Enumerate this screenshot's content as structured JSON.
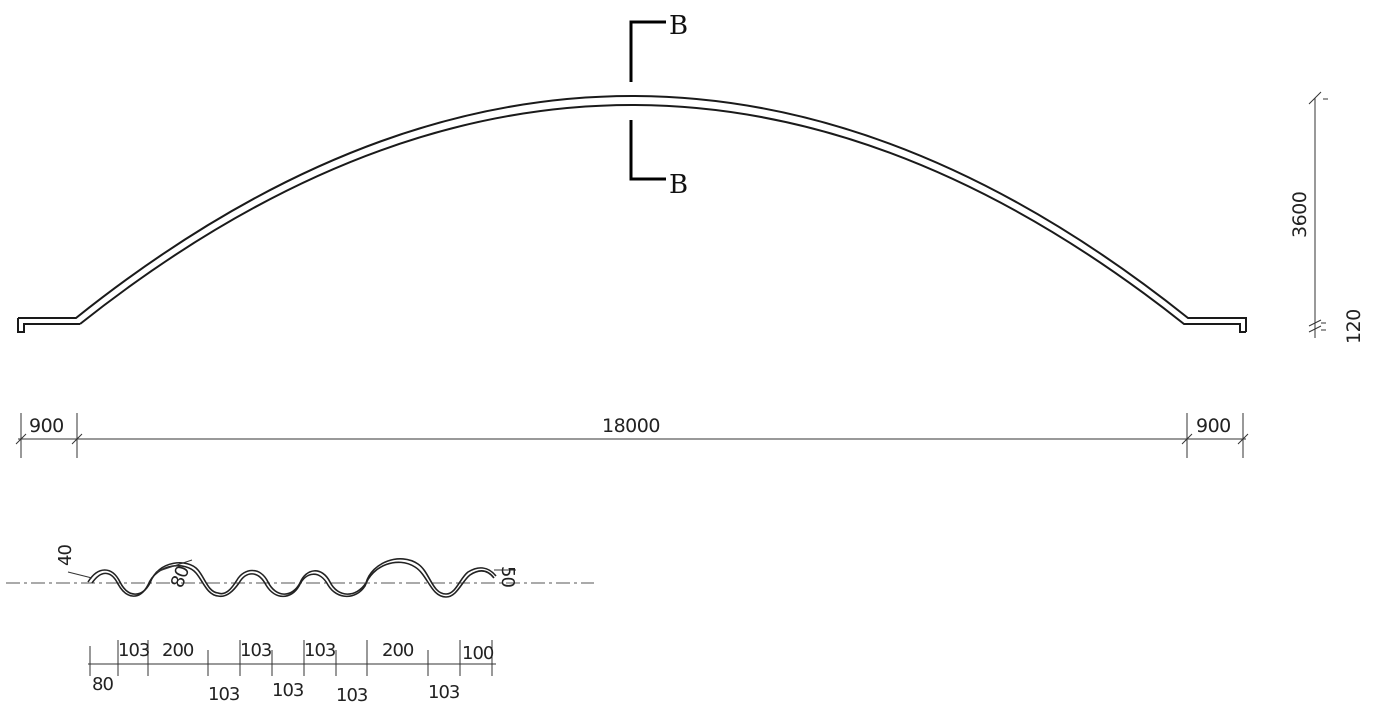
{
  "section_cut": {
    "label_top": "B",
    "label_bottom": "B"
  },
  "dimensions": {
    "left_overhang": "900",
    "span": "18000",
    "right_overhang": "900",
    "rise": "3600",
    "base_height": "120"
  },
  "profile_dimensions": {
    "top_row": [
      "103",
      "200",
      "103",
      "103",
      "200",
      "100"
    ],
    "bottom_row": [
      "80",
      "103",
      "103",
      "103",
      "103"
    ],
    "annotation_left": "40",
    "annotation_radius": "80",
    "annotation_right": "50"
  }
}
